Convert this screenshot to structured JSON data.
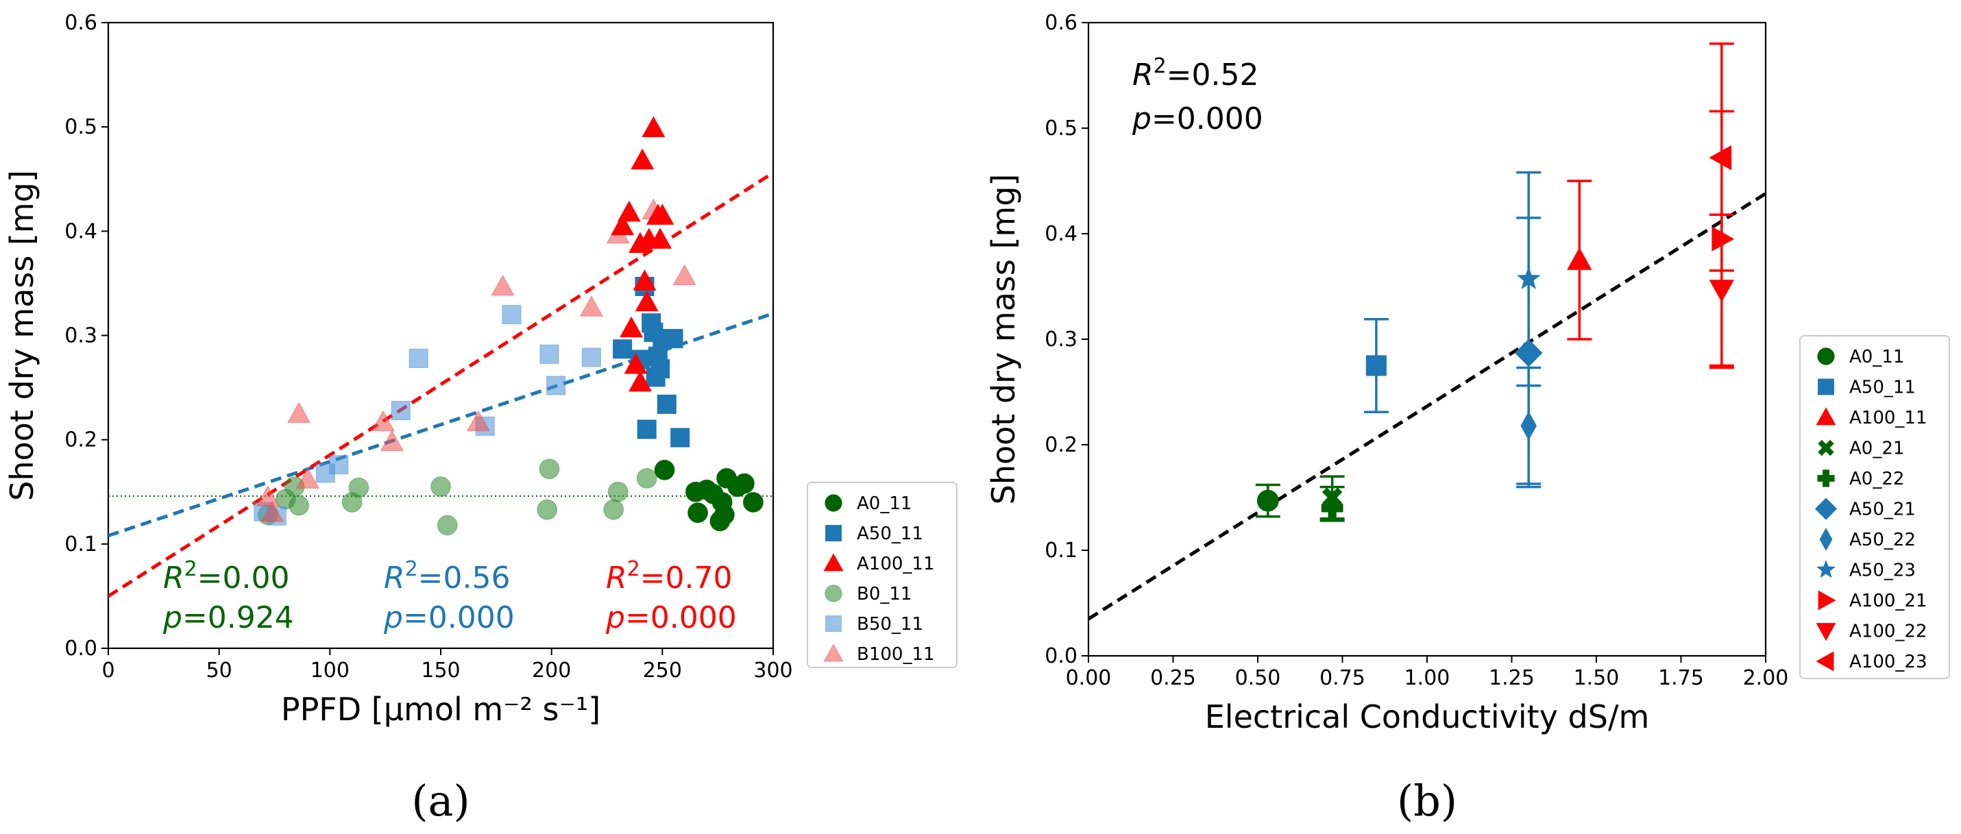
{
  "chart_data": [
    {
      "type": "scatter",
      "panel_label": "(a)",
      "xlabel": "PPFD [μmol m⁻² s⁻¹]",
      "ylabel": "Shoot dry mass [mg]",
      "xlim": [
        0,
        300
      ],
      "ylim": [
        0,
        0.6
      ],
      "xticks": [
        0,
        50,
        100,
        150,
        200,
        250,
        300
      ],
      "yticks": [
        0.0,
        0.1,
        0.2,
        0.3,
        0.4,
        0.5,
        0.6
      ],
      "grid": false,
      "legend_position": "outside-right",
      "series": [
        {
          "name": "A0_11",
          "marker": "circle",
          "color": "#006400",
          "alpha": 1,
          "points": [
            [
              251,
              0.171
            ],
            [
              265,
              0.15
            ],
            [
              266,
              0.13
            ],
            [
              270,
              0.152
            ],
            [
              273,
              0.148
            ],
            [
              276,
              0.122
            ],
            [
              277,
              0.14
            ],
            [
              278,
              0.128
            ],
            [
              279,
              0.163
            ],
            [
              284,
              0.155
            ],
            [
              287,
              0.158
            ],
            [
              291,
              0.14
            ]
          ]
        },
        {
          "name": "A50_11",
          "marker": "square",
          "color": "#1f77b4",
          "alpha": 1,
          "points": [
            [
              232,
              0.287
            ],
            [
              240,
              0.277
            ],
            [
              242,
              0.347
            ],
            [
              243,
              0.21
            ],
            [
              245,
              0.312
            ],
            [
              246,
              0.303
            ],
            [
              247,
              0.26
            ],
            [
              248,
              0.28
            ],
            [
              249,
              0.268
            ],
            [
              250,
              0.297
            ],
            [
              252,
              0.234
            ],
            [
              255,
              0.297
            ],
            [
              258,
              0.202
            ]
          ]
        },
        {
          "name": "A100_11",
          "marker": "triangle",
          "color": "#ff0000",
          "alpha": 1,
          "points": [
            [
              232,
              0.405
            ],
            [
              235,
              0.418
            ],
            [
              236,
              0.307
            ],
            [
              238,
              0.272
            ],
            [
              240,
              0.388
            ],
            [
              240,
              0.255
            ],
            [
              241,
              0.468
            ],
            [
              242,
              0.352
            ],
            [
              243,
              0.332
            ],
            [
              244,
              0.392
            ],
            [
              246,
              0.499
            ],
            [
              248,
              0.415
            ],
            [
              249,
              0.392
            ],
            [
              250,
              0.415
            ]
          ]
        },
        {
          "name": "B0_11",
          "marker": "circle",
          "color": "#2e8b2e",
          "alpha": 0.55,
          "points": [
            [
              72,
              0.128
            ],
            [
              80,
              0.143
            ],
            [
              84,
              0.155
            ],
            [
              86,
              0.137
            ],
            [
              110,
              0.14
            ],
            [
              113,
              0.154
            ],
            [
              150,
              0.155
            ],
            [
              153,
              0.118
            ],
            [
              198,
              0.133
            ],
            [
              199,
              0.172
            ],
            [
              228,
              0.133
            ],
            [
              230,
              0.15
            ],
            [
              243,
              0.163
            ]
          ]
        },
        {
          "name": "B50_11",
          "marker": "square",
          "color": "#4a90d9",
          "alpha": 0.55,
          "points": [
            [
              70,
              0.131
            ],
            [
              76,
              0.127
            ],
            [
              98,
              0.168
            ],
            [
              104,
              0.176
            ],
            [
              132,
              0.228
            ],
            [
              140,
              0.278
            ],
            [
              170,
              0.213
            ],
            [
              182,
              0.32
            ],
            [
              199,
              0.282
            ],
            [
              202,
              0.252
            ],
            [
              218,
              0.279
            ]
          ]
        },
        {
          "name": "B100_11",
          "marker": "triangle",
          "color": "#f05050",
          "alpha": 0.55,
          "points": [
            [
              72,
              0.145
            ],
            [
              74,
              0.13
            ],
            [
              86,
              0.225
            ],
            [
              90,
              0.162
            ],
            [
              124,
              0.217
            ],
            [
              128,
              0.198
            ],
            [
              167,
              0.217
            ],
            [
              178,
              0.347
            ],
            [
              218,
              0.327
            ],
            [
              230,
              0.397
            ],
            [
              246,
              0.42
            ],
            [
              260,
              0.357
            ]
          ]
        }
      ],
      "fit_lines": [
        {
          "series": "A0_11 + B0_11",
          "color": "#006400",
          "style": "dotted",
          "x": [
            0,
            300
          ],
          "y": [
            0.146,
            0.146
          ]
        },
        {
          "series": "A50_11 + B50_11",
          "color": "#1f77b4",
          "style": "dashed",
          "x": [
            0,
            300
          ],
          "y": [
            0.108,
            0.321
          ]
        },
        {
          "series": "A100_11 + B100_11",
          "color": "#ff0000",
          "style": "dashed",
          "x": [
            0,
            300
          ],
          "y": [
            0.05,
            0.456
          ]
        }
      ],
      "annotations": [
        {
          "color": "#006400",
          "r2_prefix": "R",
          "r2_value": "=0.00",
          "p_prefix": "p",
          "p_value": "=0.924"
        },
        {
          "color": "#1f77b4",
          "r2_prefix": "R",
          "r2_value": "=0.56",
          "p_prefix": "p",
          "p_value": "=0.000"
        },
        {
          "color": "#ff0000",
          "r2_prefix": "R",
          "r2_value": "=0.70",
          "p_prefix": "p",
          "p_value": "=0.000"
        }
      ]
    },
    {
      "type": "scatter",
      "panel_label": "(b)",
      "xlabel": "Electrical Conductivity dS/m",
      "ylabel": "Shoot dry mass [mg]",
      "xlim": [
        0.0,
        2.0
      ],
      "ylim": [
        0.0,
        0.6
      ],
      "xticks": [
        0.0,
        0.25,
        0.5,
        0.75,
        1.0,
        1.25,
        1.5,
        1.75,
        2.0
      ],
      "xtick_labels": [
        "0.00",
        "0.25",
        "0.50",
        "0.75",
        "1.00",
        "1.25",
        "1.50",
        "1.75",
        "2.00"
      ],
      "yticks": [
        0.0,
        0.1,
        0.2,
        0.3,
        0.4,
        0.5,
        0.6
      ],
      "grid": false,
      "legend_position": "outside-right",
      "series": [
        {
          "name": "A0_11",
          "marker": "circle",
          "color": "#006400",
          "x": 0.53,
          "y": 0.147,
          "yerr_low": 0.132,
          "yerr_high": 0.162
        },
        {
          "name": "A50_11",
          "marker": "square",
          "color": "#1f77b4",
          "x": 0.85,
          "y": 0.275,
          "yerr_low": 0.231,
          "yerr_high": 0.319
        },
        {
          "name": "A100_11",
          "marker": "triangle",
          "color": "#ff0000",
          "x": 1.45,
          "y": 0.375,
          "yerr_low": 0.3,
          "yerr_high": 0.45
        },
        {
          "name": "A0_21",
          "marker": "x",
          "color": "#006400",
          "x": 0.72,
          "y": 0.15,
          "yerr_low": 0.13,
          "yerr_high": 0.17
        },
        {
          "name": "A0_22",
          "marker": "plus",
          "color": "#006400",
          "x": 0.72,
          "y": 0.14,
          "yerr_low": 0.128,
          "yerr_high": 0.16
        },
        {
          "name": "A50_21",
          "marker": "diamond",
          "color": "#1f77b4",
          "x": 1.3,
          "y": 0.287,
          "yerr_low": 0.16,
          "yerr_high": 0.415
        },
        {
          "name": "A50_22",
          "marker": "thin-diamond",
          "color": "#1f77b4",
          "x": 1.3,
          "y": 0.218,
          "yerr_low": 0.163,
          "yerr_high": 0.273
        },
        {
          "name": "A50_23",
          "marker": "star",
          "color": "#1f77b4",
          "x": 1.3,
          "y": 0.357,
          "yerr_low": 0.256,
          "yerr_high": 0.458
        },
        {
          "name": "A100_21",
          "marker": "triangle-right",
          "color": "#ff0000",
          "x": 1.87,
          "y": 0.395,
          "yerr_low": 0.275,
          "yerr_high": 0.516
        },
        {
          "name": "A100_22",
          "marker": "triangle-down",
          "color": "#ff0000",
          "x": 1.87,
          "y": 0.347,
          "yerr_low": 0.273,
          "yerr_high": 0.418
        },
        {
          "name": "A100_23",
          "marker": "triangle-left",
          "color": "#ff0000",
          "x": 1.87,
          "y": 0.472,
          "yerr_low": 0.365,
          "yerr_high": 0.58
        }
      ],
      "fit_lines": [
        {
          "color": "#000000",
          "style": "dashed",
          "x": [
            0.0,
            2.0
          ],
          "y": [
            0.035,
            0.438
          ]
        }
      ],
      "annotations": [
        {
          "color": "#000000",
          "r2_prefix": "R",
          "r2_value": "=0.52",
          "p_prefix": "p",
          "p_value": "=0.000"
        }
      ]
    }
  ]
}
